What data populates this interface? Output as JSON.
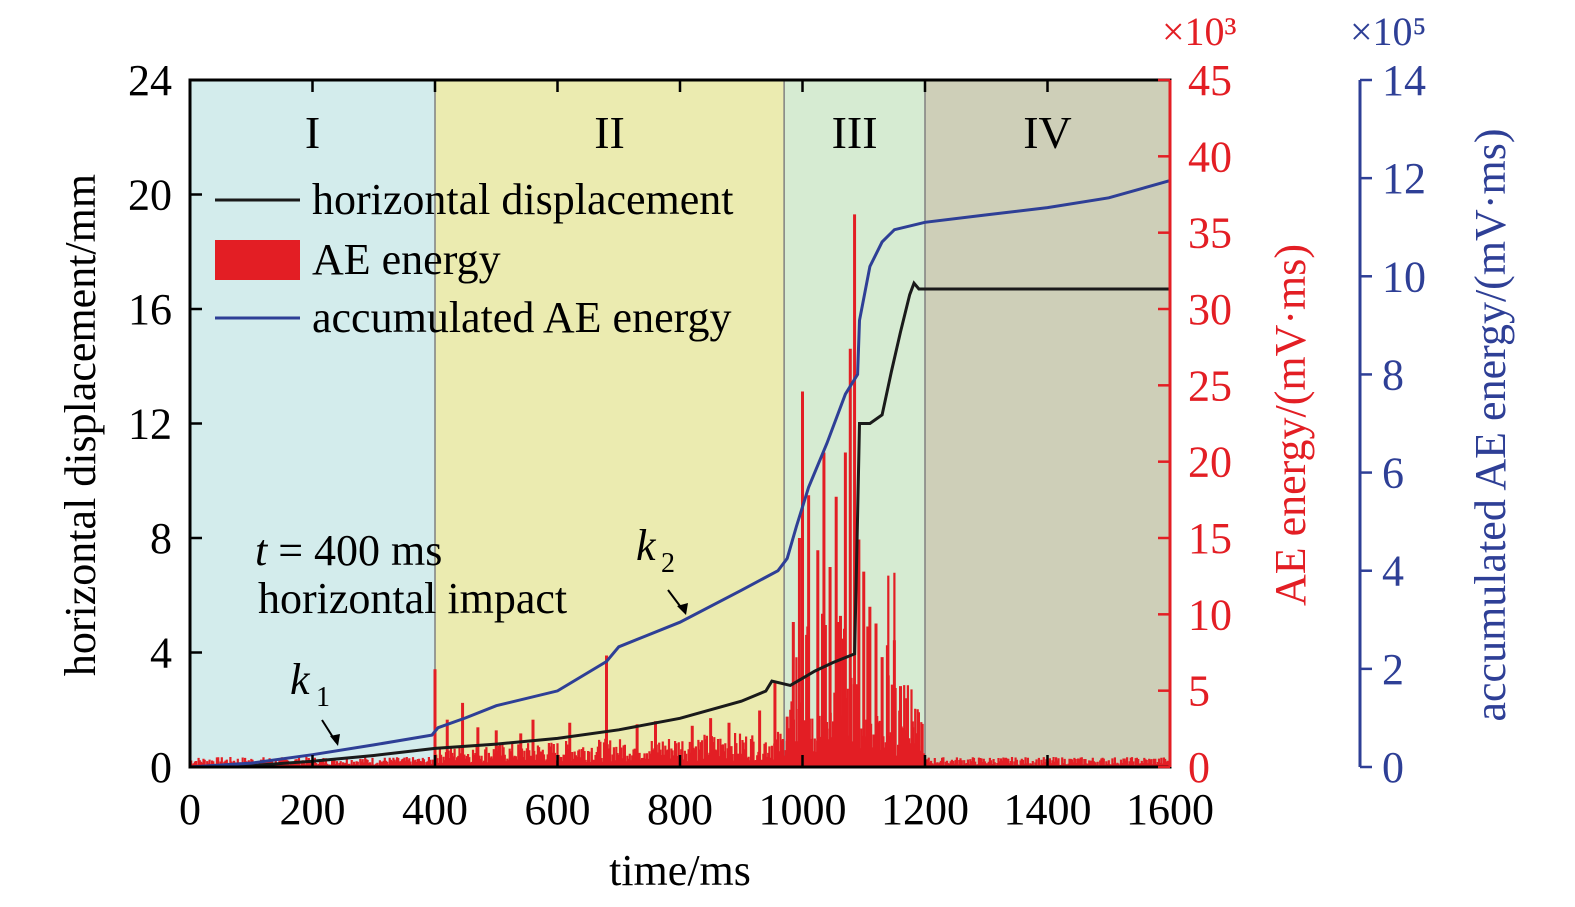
{
  "chart_data": {
    "type": "line",
    "xlabel": "time/ms",
    "xlim": [
      0,
      1600
    ],
    "xticks": [
      0,
      200,
      400,
      600,
      800,
      1000,
      1200,
      1400,
      1600
    ],
    "y_left": {
      "label": "horizontal displacement/mm",
      "lim": [
        0,
        24
      ],
      "ticks": [
        0,
        4,
        8,
        12,
        16,
        20,
        24
      ]
    },
    "y_right1": {
      "label": "AE energy/(mV·ms)",
      "multiplier": "×10³",
      "lim": [
        0,
        45
      ],
      "ticks": [
        0,
        5,
        10,
        15,
        20,
        25,
        30,
        35,
        40,
        45
      ],
      "color": "#e31e24"
    },
    "y_right2": {
      "label": "accumulated AE energy/(mV·ms)",
      "multiplier": "×10⁵",
      "lim": [
        0,
        14
      ],
      "ticks": [
        0,
        2,
        4,
        6,
        8,
        10,
        12,
        14
      ],
      "color": "#2e3f96"
    },
    "stages": [
      {
        "label": "I",
        "x0": 0,
        "x1": 400,
        "color": "#d3ecec"
      },
      {
        "label": "II",
        "x0": 400,
        "x1": 970,
        "color": "#ebebb0"
      },
      {
        "label": "III",
        "x0": 970,
        "x1": 1200,
        "color": "#d6ebd2"
      },
      {
        "label": "IV",
        "x0": 1200,
        "x1": 1600,
        "color": "#cecfb8"
      }
    ],
    "legend": {
      "position": "top-left",
      "entries": [
        "horizontal displacement",
        "AE energy",
        "accumulated AE energy"
      ]
    },
    "annotations": {
      "impact_line1": "t = 400 ms",
      "impact_line2": "horizontal impact",
      "k1": "k",
      "k1_sub": "1",
      "k2": "k",
      "k2_sub": "2"
    },
    "series": [
      {
        "name": "horizontal displacement",
        "axis": "left",
        "color": "#1a1a1a",
        "points": [
          [
            0,
            0
          ],
          [
            100,
            0.05
          ],
          [
            200,
            0.2
          ],
          [
            300,
            0.4
          ],
          [
            400,
            0.65
          ],
          [
            500,
            0.8
          ],
          [
            600,
            1.0
          ],
          [
            700,
            1.3
          ],
          [
            800,
            1.7
          ],
          [
            900,
            2.3
          ],
          [
            940,
            2.65
          ],
          [
            950,
            3.0
          ],
          [
            980,
            2.85
          ],
          [
            1000,
            3.1
          ],
          [
            1020,
            3.35
          ],
          [
            1050,
            3.65
          ],
          [
            1085,
            3.95
          ],
          [
            1090,
            8.8
          ],
          [
            1093,
            12.0
          ],
          [
            1110,
            12.0
          ],
          [
            1130,
            12.3
          ],
          [
            1145,
            13.8
          ],
          [
            1160,
            15.2
          ],
          [
            1175,
            16.5
          ],
          [
            1182,
            16.9
          ],
          [
            1190,
            16.7
          ],
          [
            1600,
            16.7
          ]
        ]
      },
      {
        "name": "accumulated AE energy",
        "axis": "right2",
        "color": "#2e3f96",
        "points": [
          [
            0,
            0
          ],
          [
            100,
            0.08
          ],
          [
            200,
            0.25
          ],
          [
            300,
            0.45
          ],
          [
            395,
            0.65
          ],
          [
            405,
            0.8
          ],
          [
            450,
            1.0
          ],
          [
            500,
            1.25
          ],
          [
            600,
            1.55
          ],
          [
            680,
            2.15
          ],
          [
            700,
            2.45
          ],
          [
            800,
            2.95
          ],
          [
            900,
            3.6
          ],
          [
            960,
            4.0
          ],
          [
            975,
            4.25
          ],
          [
            990,
            4.9
          ],
          [
            1010,
            5.7
          ],
          [
            1040,
            6.6
          ],
          [
            1070,
            7.6
          ],
          [
            1090,
            8.0
          ],
          [
            1093,
            9.1
          ],
          [
            1110,
            10.2
          ],
          [
            1130,
            10.7
          ],
          [
            1150,
            10.95
          ],
          [
            1200,
            11.1
          ],
          [
            1300,
            11.25
          ],
          [
            1400,
            11.4
          ],
          [
            1500,
            11.6
          ],
          [
            1600,
            11.95
          ]
        ]
      },
      {
        "name": "AE energy",
        "axis": "right1",
        "color": "#e31e24",
        "peaks": [
          [
            400,
            6.4
          ],
          [
            420,
            3.1
          ],
          [
            445,
            4.2
          ],
          [
            470,
            2.6
          ],
          [
            500,
            2.4
          ],
          [
            540,
            2.2
          ],
          [
            560,
            3.1
          ],
          [
            620,
            2.9
          ],
          [
            680,
            7.3
          ],
          [
            730,
            2.8
          ],
          [
            760,
            3.0
          ],
          [
            820,
            2.7
          ],
          [
            850,
            3.2
          ],
          [
            880,
            2.9
          ],
          [
            930,
            3.7
          ],
          [
            955,
            5.6
          ],
          [
            975,
            3.3
          ],
          [
            985,
            9.5
          ],
          [
            995,
            15.0
          ],
          [
            1000,
            24.6
          ],
          [
            1010,
            17.8
          ],
          [
            1025,
            14.2
          ],
          [
            1035,
            20.6
          ],
          [
            1045,
            13.1
          ],
          [
            1055,
            17.7
          ],
          [
            1062,
            9.9
          ],
          [
            1070,
            20.6
          ],
          [
            1078,
            27.4
          ],
          [
            1085,
            36.2
          ],
          [
            1092,
            14.9
          ],
          [
            1100,
            12.8
          ],
          [
            1110,
            10.5
          ],
          [
            1120,
            9.4
          ],
          [
            1130,
            7.2
          ],
          [
            1140,
            6.0
          ],
          [
            1150,
            8.3
          ],
          [
            1160,
            5.3
          ],
          [
            1170,
            4.5
          ],
          [
            1180,
            2.6
          ],
          [
            1195,
            1.4
          ]
        ]
      }
    ]
  }
}
